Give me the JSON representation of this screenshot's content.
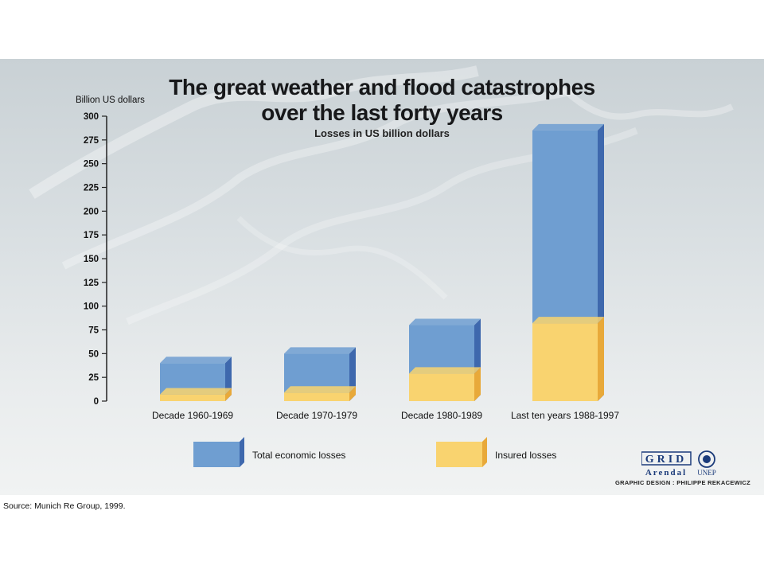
{
  "figure": {
    "title_line_1": "The great weather and flood catastrophes",
    "title_line_2": "over the last forty years",
    "subtitle": "Losses in US billion dollars",
    "credit": "GRAPHIC DESIGN : PHILIPPE REKACEWICZ",
    "logo_text_main": "GRID",
    "logo_text_sub": "Arendal",
    "logo_unep": "UNEP"
  },
  "source": "Source: Munich Re Group, 1999.",
  "chart_data": {
    "type": "bar",
    "stacked": false,
    "overlapping": true,
    "title": "The great weather and flood catastrophes over the last forty years",
    "subtitle": "Losses in US billion dollars",
    "ylabel": "Billion US dollars",
    "xlabel": "",
    "ylim": [
      0,
      300
    ],
    "yticks": [
      0,
      25,
      50,
      75,
      100,
      125,
      150,
      175,
      200,
      225,
      250,
      275,
      300
    ],
    "grid": false,
    "legend_position": "bottom",
    "categories": [
      "Decade 1960-1969",
      "Decade 1970-1979",
      "Decade 1980-1989",
      "Last ten years 1988-1997"
    ],
    "series": [
      {
        "name": "Total economic losses",
        "color": "#6f9ed1",
        "side_color": "#3e68ad",
        "values": [
          40,
          50,
          80,
          285
        ]
      },
      {
        "name": "Insured losses",
        "color": "#f9d36f",
        "side_color": "#e8a93a",
        "values": [
          7,
          9,
          29,
          82
        ]
      }
    ]
  }
}
